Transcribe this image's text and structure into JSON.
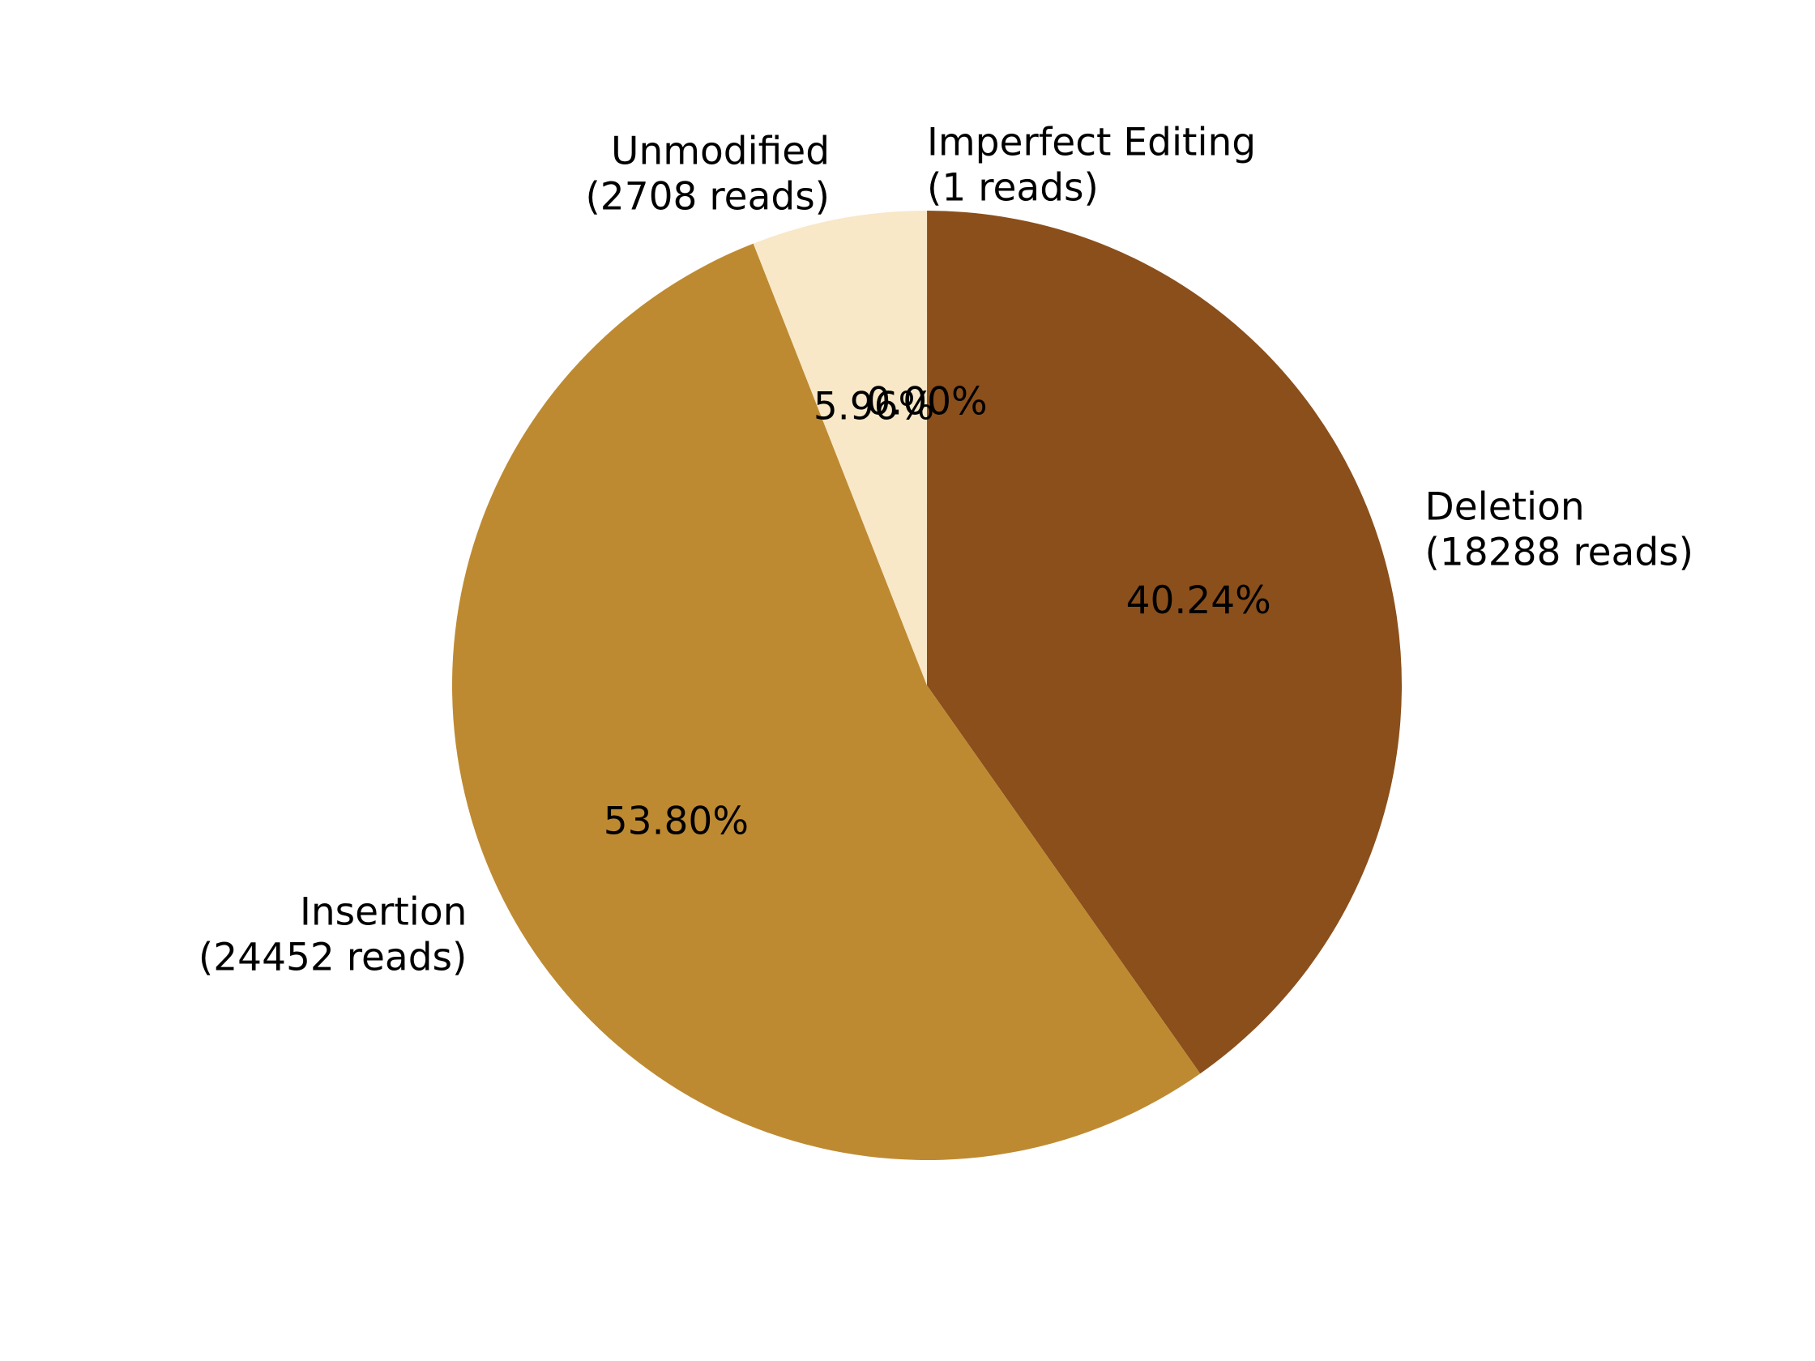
{
  "chart_data": {
    "type": "pie",
    "title": "",
    "start_angle": 90,
    "direction": "clockwise",
    "slices": [
      {
        "name": "Imperfect Editing",
        "reads": 1,
        "percent": 0.0,
        "label_line1": "Imperfect Editing",
        "label_line2": "(1 reads)",
        "pct_label": "0.00%",
        "color": "#8B4513"
      },
      {
        "name": "Deletion",
        "reads": 18288,
        "percent": 40.24,
        "label_line1": "Deletion",
        "label_line2": "(18288 reads)",
        "pct_label": "40.24%",
        "color": "#8B4F1B"
      },
      {
        "name": "Insertion",
        "reads": 24452,
        "percent": 53.8,
        "label_line1": "Insertion",
        "label_line2": "(24452 reads)",
        "pct_label": "53.80%",
        "color": "#BE8A31"
      },
      {
        "name": "Unmodified",
        "reads": 2708,
        "percent": 5.96,
        "label_line1": "Unmodified",
        "label_line2": "(2708 reads)",
        "pct_label": "5.96%",
        "color": "#F8E8C8"
      }
    ]
  }
}
